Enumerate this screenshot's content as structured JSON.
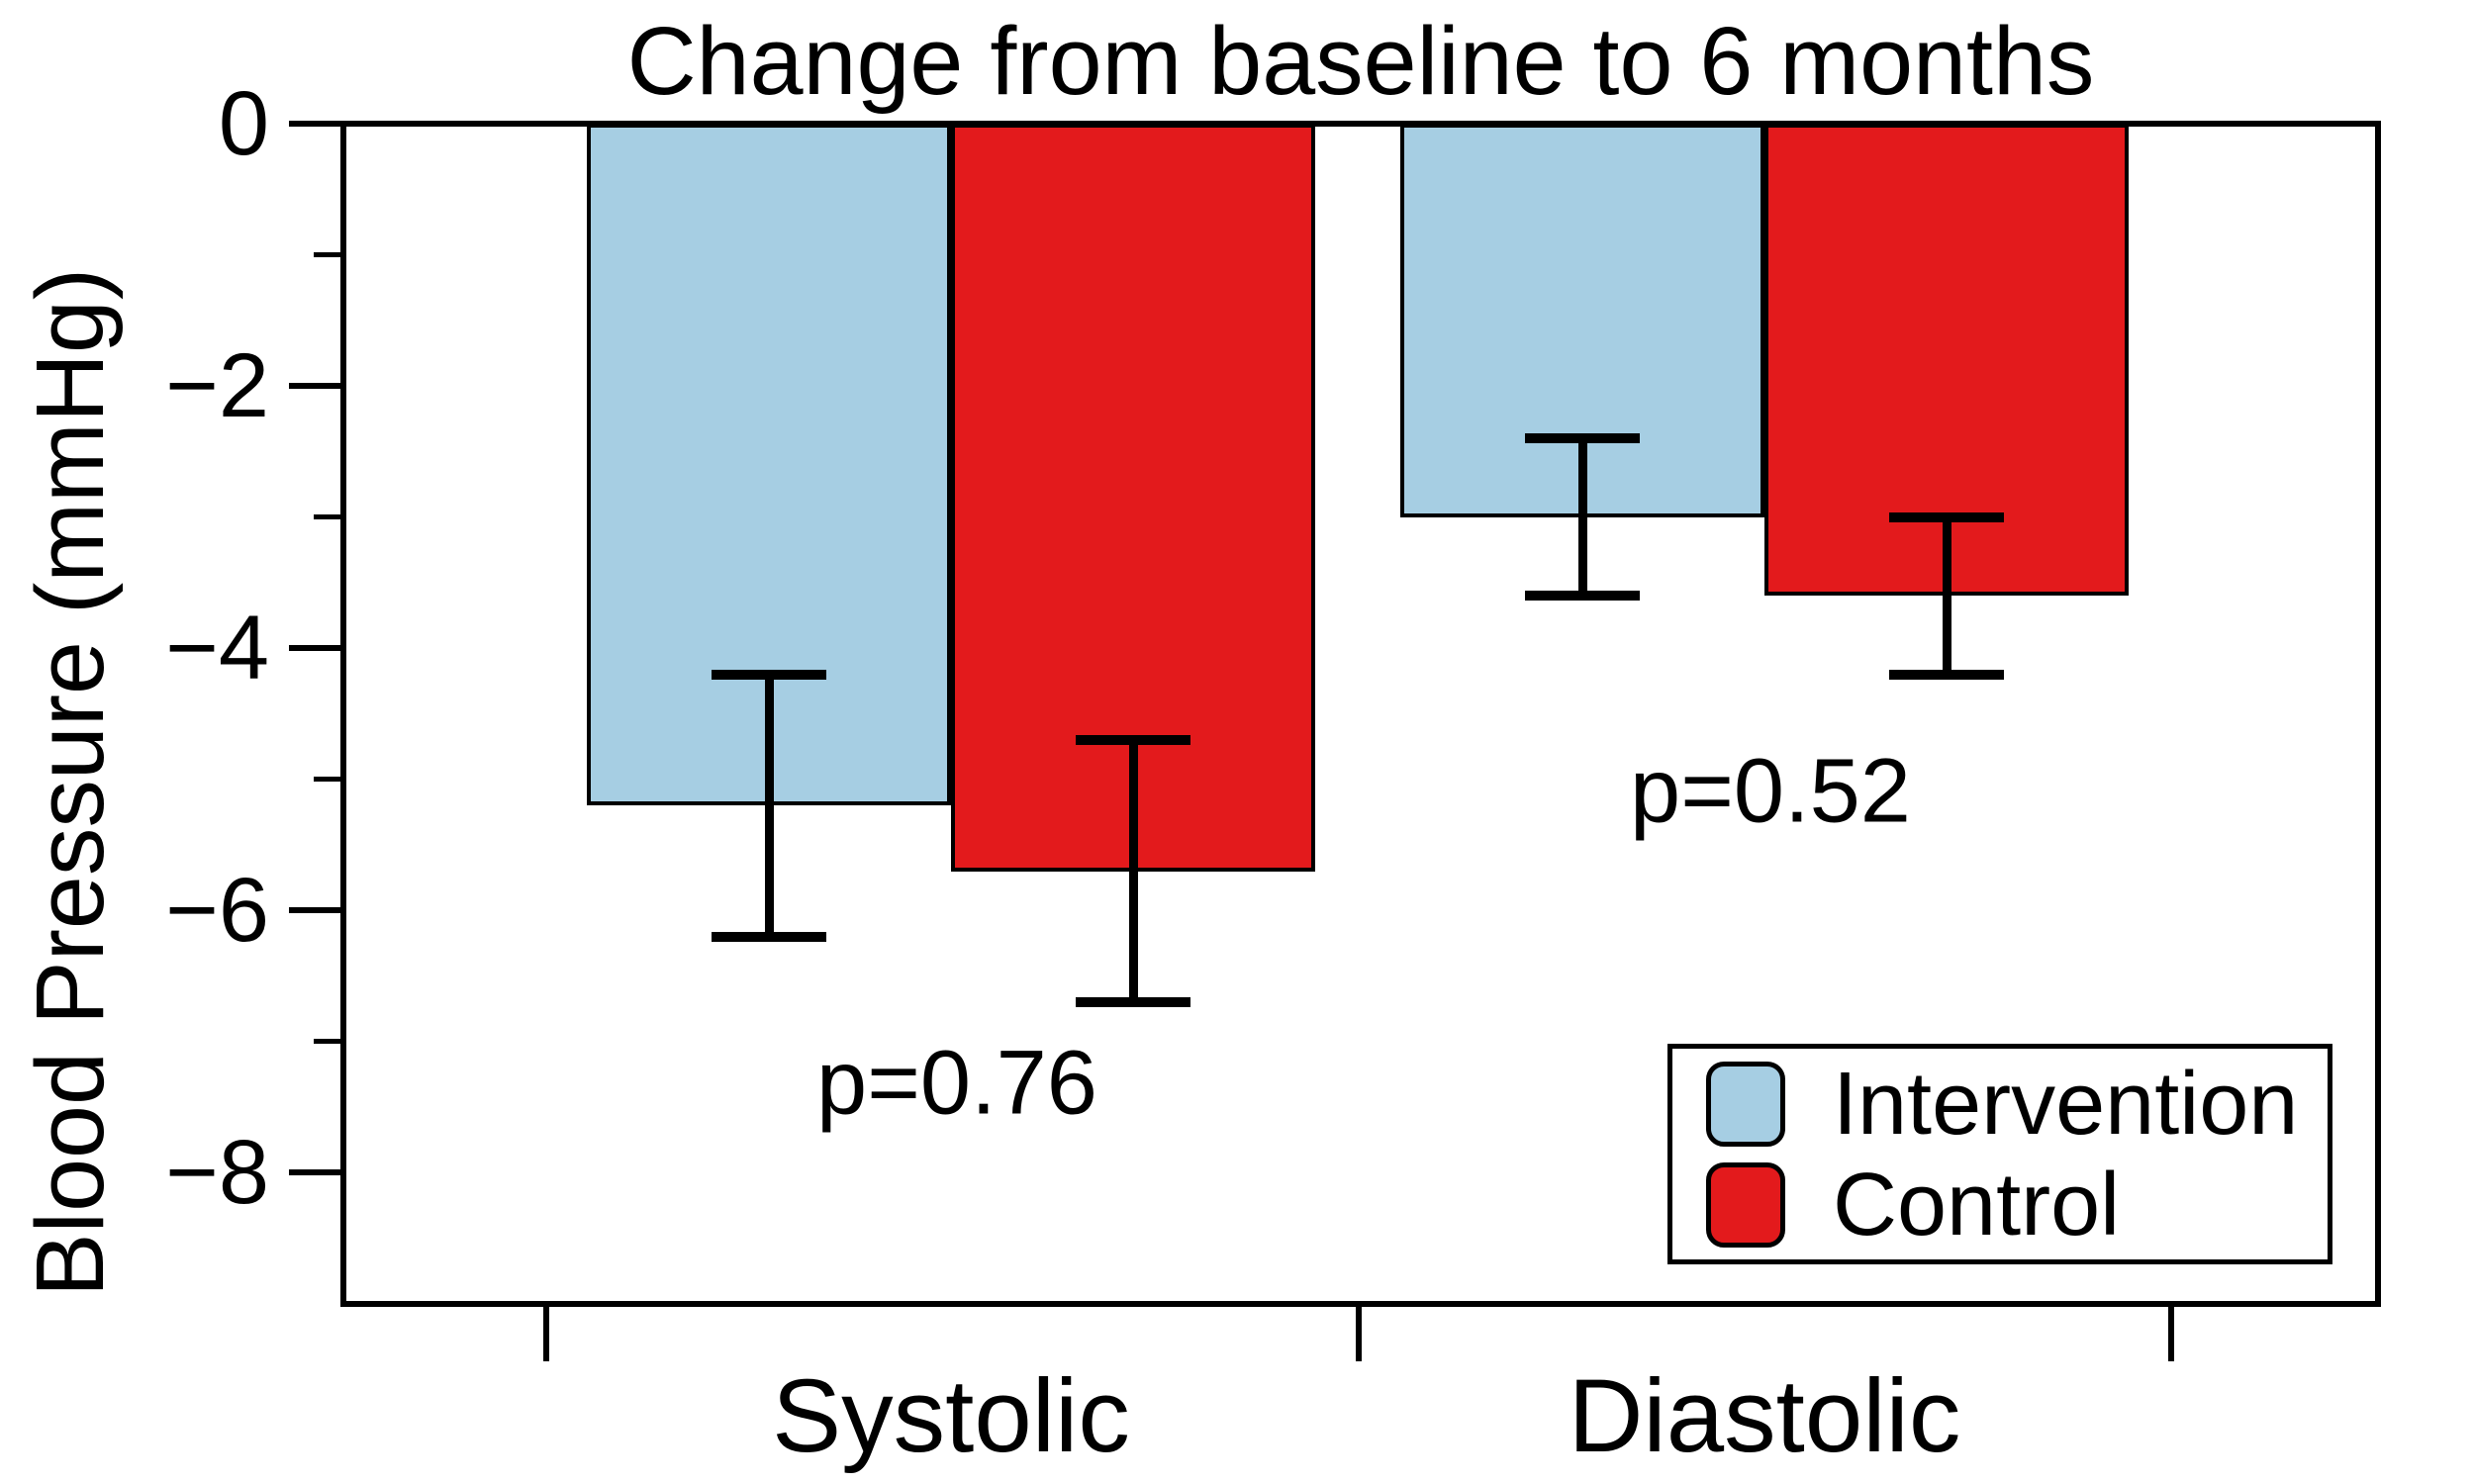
{
  "chart_data": {
    "type": "bar",
    "title": "Change from baseline to 6 months",
    "ylabel": "Blood Pressure (mmHg)",
    "ylim": [
      -9,
      0
    ],
    "grid": false,
    "yticks": {
      "major": [
        {
          "value": 0,
          "label": "0"
        },
        {
          "value": -2,
          "label": "−2"
        },
        {
          "value": -4,
          "label": "−4"
        },
        {
          "value": -6,
          "label": "−6"
        },
        {
          "value": -8,
          "label": "−8"
        }
      ],
      "minor": [
        -1,
        -3,
        -5,
        -7
      ]
    },
    "categories": [
      {
        "label": "Systolic",
        "p_label": "p=0.76"
      },
      {
        "label": "Diastolic",
        "p_label": "p=0.52"
      }
    ],
    "series": [
      {
        "name": "Intervention",
        "color": "#A6CEE3",
        "values": [
          -5.2,
          -3.0
        ],
        "error_high": [
          -4.2,
          -2.4
        ],
        "error_low": [
          -6.2,
          -3.6
        ]
      },
      {
        "name": "Control",
        "color": "#E31A1C",
        "values": [
          -5.7,
          -3.6
        ],
        "error_high": [
          -4.7,
          -3.0
        ],
        "error_low": [
          -6.7,
          -4.2
        ]
      }
    ],
    "legend_position": "lower right"
  }
}
